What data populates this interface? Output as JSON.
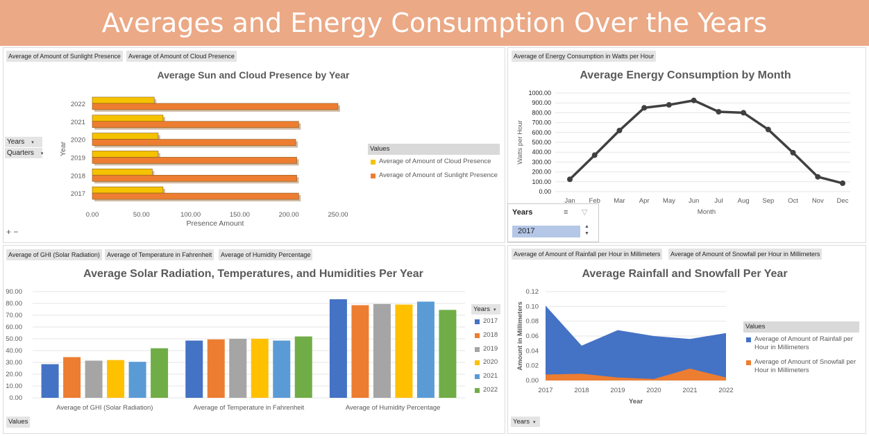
{
  "banner": {
    "title": "Averages and Energy Consumption Over the Years"
  },
  "panel1": {
    "chips": [
      "Average of Amount of Sunlight Presence",
      "Average of Amount of Cloud Presence"
    ],
    "filters": [
      "Years",
      "Quarters"
    ],
    "plus_minus": "+ −"
  },
  "panel2": {
    "chips": [
      "Average of Energy Consumption in Watts per Hour"
    ],
    "slicer": {
      "title": "Years",
      "selected": "2017",
      "multiselect_icon": "multi-select-icon",
      "clear_icon": "clear-filter-icon"
    }
  },
  "panel3": {
    "chips": [
      "Average of GHI (Solar Radiation)",
      "Average of Temperature in Fahrenheit",
      "Average of Humidity Percentage"
    ],
    "bottom_chip": "Values",
    "legend_dropdown": "Years"
  },
  "panel4": {
    "chips": [
      "Average of Amount of Rainfall per Hour in Millimeters",
      "Average of Amount of Snowfall per Hour in Millimeters"
    ],
    "bottom_dropdown": "Years"
  },
  "chart_data": [
    {
      "id": "sun_cloud",
      "type": "bar",
      "orientation": "horizontal",
      "title": "Average Sun and Cloud Presence by Year",
      "xlabel": "Presence Amount",
      "ylabel": "Year",
      "categories": [
        "2017",
        "2018",
        "2019",
        "2020",
        "2021",
        "2022"
      ],
      "series": [
        {
          "name": "Average of Amount of Cloud Presence",
          "values": [
            72,
            61,
            67,
            67,
            72,
            63
          ],
          "color": "#f5c200"
        },
        {
          "name": "Average of Amount of Sunlight Presence",
          "values": [
            210,
            208,
            208,
            207,
            210,
            250
          ],
          "color": "#ed7d31"
        }
      ],
      "xlim": [
        0,
        250
      ],
      "xticks": [
        "0.00",
        "50.00",
        "100.00",
        "150.00",
        "200.00",
        "250.00"
      ],
      "legend_title": "Values",
      "legend_position": "right"
    },
    {
      "id": "energy",
      "type": "line",
      "title": "Average Energy Consumption by Month",
      "xlabel": "Month",
      "ylabel": "Watts per Hour",
      "categories": [
        "Jan",
        "Feb",
        "Mar",
        "Apr",
        "May",
        "Jun",
        "Jul",
        "Aug",
        "Sep",
        "Oct",
        "Nov",
        "Dec"
      ],
      "values": [
        125,
        370,
        620,
        850,
        880,
        925,
        810,
        800,
        630,
        395,
        150,
        85
      ],
      "ylim": [
        0,
        1000
      ],
      "yticks": [
        "0.00",
        "100.00",
        "200.00",
        "300.00",
        "400.00",
        "500.00",
        "600.00",
        "700.00",
        "800.00",
        "900.00",
        "1000.00"
      ],
      "color": "#404040"
    },
    {
      "id": "solar_temp_hum",
      "type": "bar",
      "title": "Average Solar Radiation, Temperatures, and Humidities Per Year",
      "categories": [
        "Average of GHI (Solar Radiation)",
        "Average of Temperature in Fahrenheit",
        "Average of Humidity Percentage"
      ],
      "series": [
        {
          "name": "2017",
          "values": [
            28.5,
            48.5,
            83.5
          ],
          "color": "#4472c4"
        },
        {
          "name": "2018",
          "values": [
            34.5,
            49.5,
            78.5
          ],
          "color": "#ed7d31"
        },
        {
          "name": "2019",
          "values": [
            31.5,
            50.0,
            79.5
          ],
          "color": "#a5a5a5"
        },
        {
          "name": "2020",
          "values": [
            32.0,
            50.0,
            79.0
          ],
          "color": "#ffc000"
        },
        {
          "name": "2021",
          "values": [
            30.5,
            48.5,
            81.5
          ],
          "color": "#5b9bd5"
        },
        {
          "name": "2022",
          "values": [
            42.0,
            52.0,
            74.5
          ],
          "color": "#70ad47"
        }
      ],
      "ylim": [
        0,
        90
      ],
      "yticks": [
        "0.00",
        "10.00",
        "20.00",
        "30.00",
        "40.00",
        "50.00",
        "60.00",
        "70.00",
        "80.00",
        "90.00"
      ],
      "legend_title": "Years",
      "legend_position": "right"
    },
    {
      "id": "rain_snow",
      "type": "area",
      "title": "Average Rainfall and Snowfall Per Year",
      "xlabel": "Year",
      "ylabel": "Amount in Millimeters",
      "categories": [
        "2017",
        "2018",
        "2019",
        "2020",
        "2021",
        "2022"
      ],
      "series": [
        {
          "name": "Average of Amount of Rainfall per Hour in Millimeters",
          "values": [
            0.101,
            0.047,
            0.068,
            0.06,
            0.056,
            0.064
          ],
          "color": "#4472c4"
        },
        {
          "name": "Average of Amount of Snowfall per Hour in Millimeters",
          "values": [
            0.008,
            0.009,
            0.004,
            0.002,
            0.016,
            0.004
          ],
          "color": "#ed7d31"
        }
      ],
      "ylim": [
        0,
        0.12
      ],
      "yticks": [
        "0.00",
        "0.02",
        "0.04",
        "0.06",
        "0.08",
        "0.10",
        "0.12"
      ],
      "legend_title": "Values",
      "legend_position": "right"
    }
  ]
}
